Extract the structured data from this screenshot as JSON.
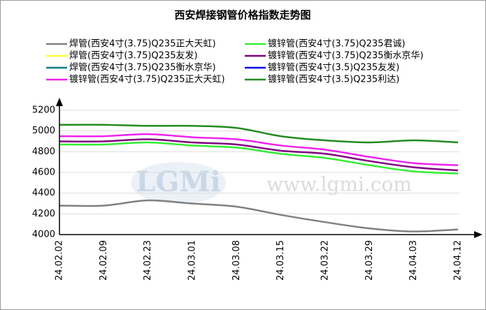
{
  "chart_data": {
    "type": "line",
    "title": "西安焊接钢管价格指数走势图",
    "watermark": [
      "LGMi",
      "www.lgmi.com"
    ],
    "categories": [
      "24.02.02",
      "24.02.09",
      "24.02.23",
      "24.03.01",
      "24.03.08",
      "24.03.15",
      "24.03.22",
      "24.03.29",
      "24.04.03",
      "24.04.12"
    ],
    "ylim": [
      4000,
      5200
    ],
    "yticks": [
      4000,
      4200,
      4400,
      4600,
      4800,
      5000,
      5200
    ],
    "grid": true,
    "series": [
      {
        "name": "焊管(西安4寸(3.75)Q235正大天虹)",
        "color": "#808080",
        "values": [
          4280,
          4280,
          4330,
          4300,
          4270,
          4190,
          4120,
          4060,
          4030,
          4050
        ]
      },
      {
        "name": "镀锌管(西安4寸(3.75)Q235君诚)",
        "color": "#33ee33",
        "values": [
          4870,
          4870,
          4890,
          4860,
          4840,
          4780,
          4740,
          4670,
          4610,
          4590
        ]
      },
      {
        "name": "焊管(西安4寸(3.75)Q235友发)",
        "color": "#ffff33",
        "values": [
          null,
          null,
          null,
          null,
          null,
          null,
          null,
          null,
          null,
          null
        ]
      },
      {
        "name": "镀锌管(西安4寸(3.75)Q235衡水京华)",
        "color": "#800080",
        "values": [
          4900,
          4900,
          4920,
          4890,
          4870,
          4810,
          4780,
          4710,
          4650,
          4620
        ]
      },
      {
        "name": "焊管(西安4寸(3.75)Q235衡水京华)",
        "color": "#008080",
        "values": [
          null,
          null,
          null,
          null,
          null,
          null,
          null,
          null,
          null,
          null
        ]
      },
      {
        "name": "镀锌管(西安4寸(3.5)Q235友发)",
        "color": "#0000ee",
        "values": [
          null,
          null,
          null,
          null,
          null,
          null,
          null,
          null,
          null,
          null
        ]
      },
      {
        "name": "镀锌管(西安4寸(3.75)Q235正大天虹)",
        "color": "#ee22ee",
        "values": [
          4950,
          4950,
          4970,
          4940,
          4920,
          4860,
          4820,
          4750,
          4690,
          4670
        ]
      },
      {
        "name": "镀锌管(西安4寸(3.5)Q235利达)",
        "color": "#228b22",
        "values": [
          5060,
          5060,
          5050,
          5050,
          5030,
          4950,
          4910,
          4890,
          4910,
          4890
        ]
      }
    ]
  }
}
